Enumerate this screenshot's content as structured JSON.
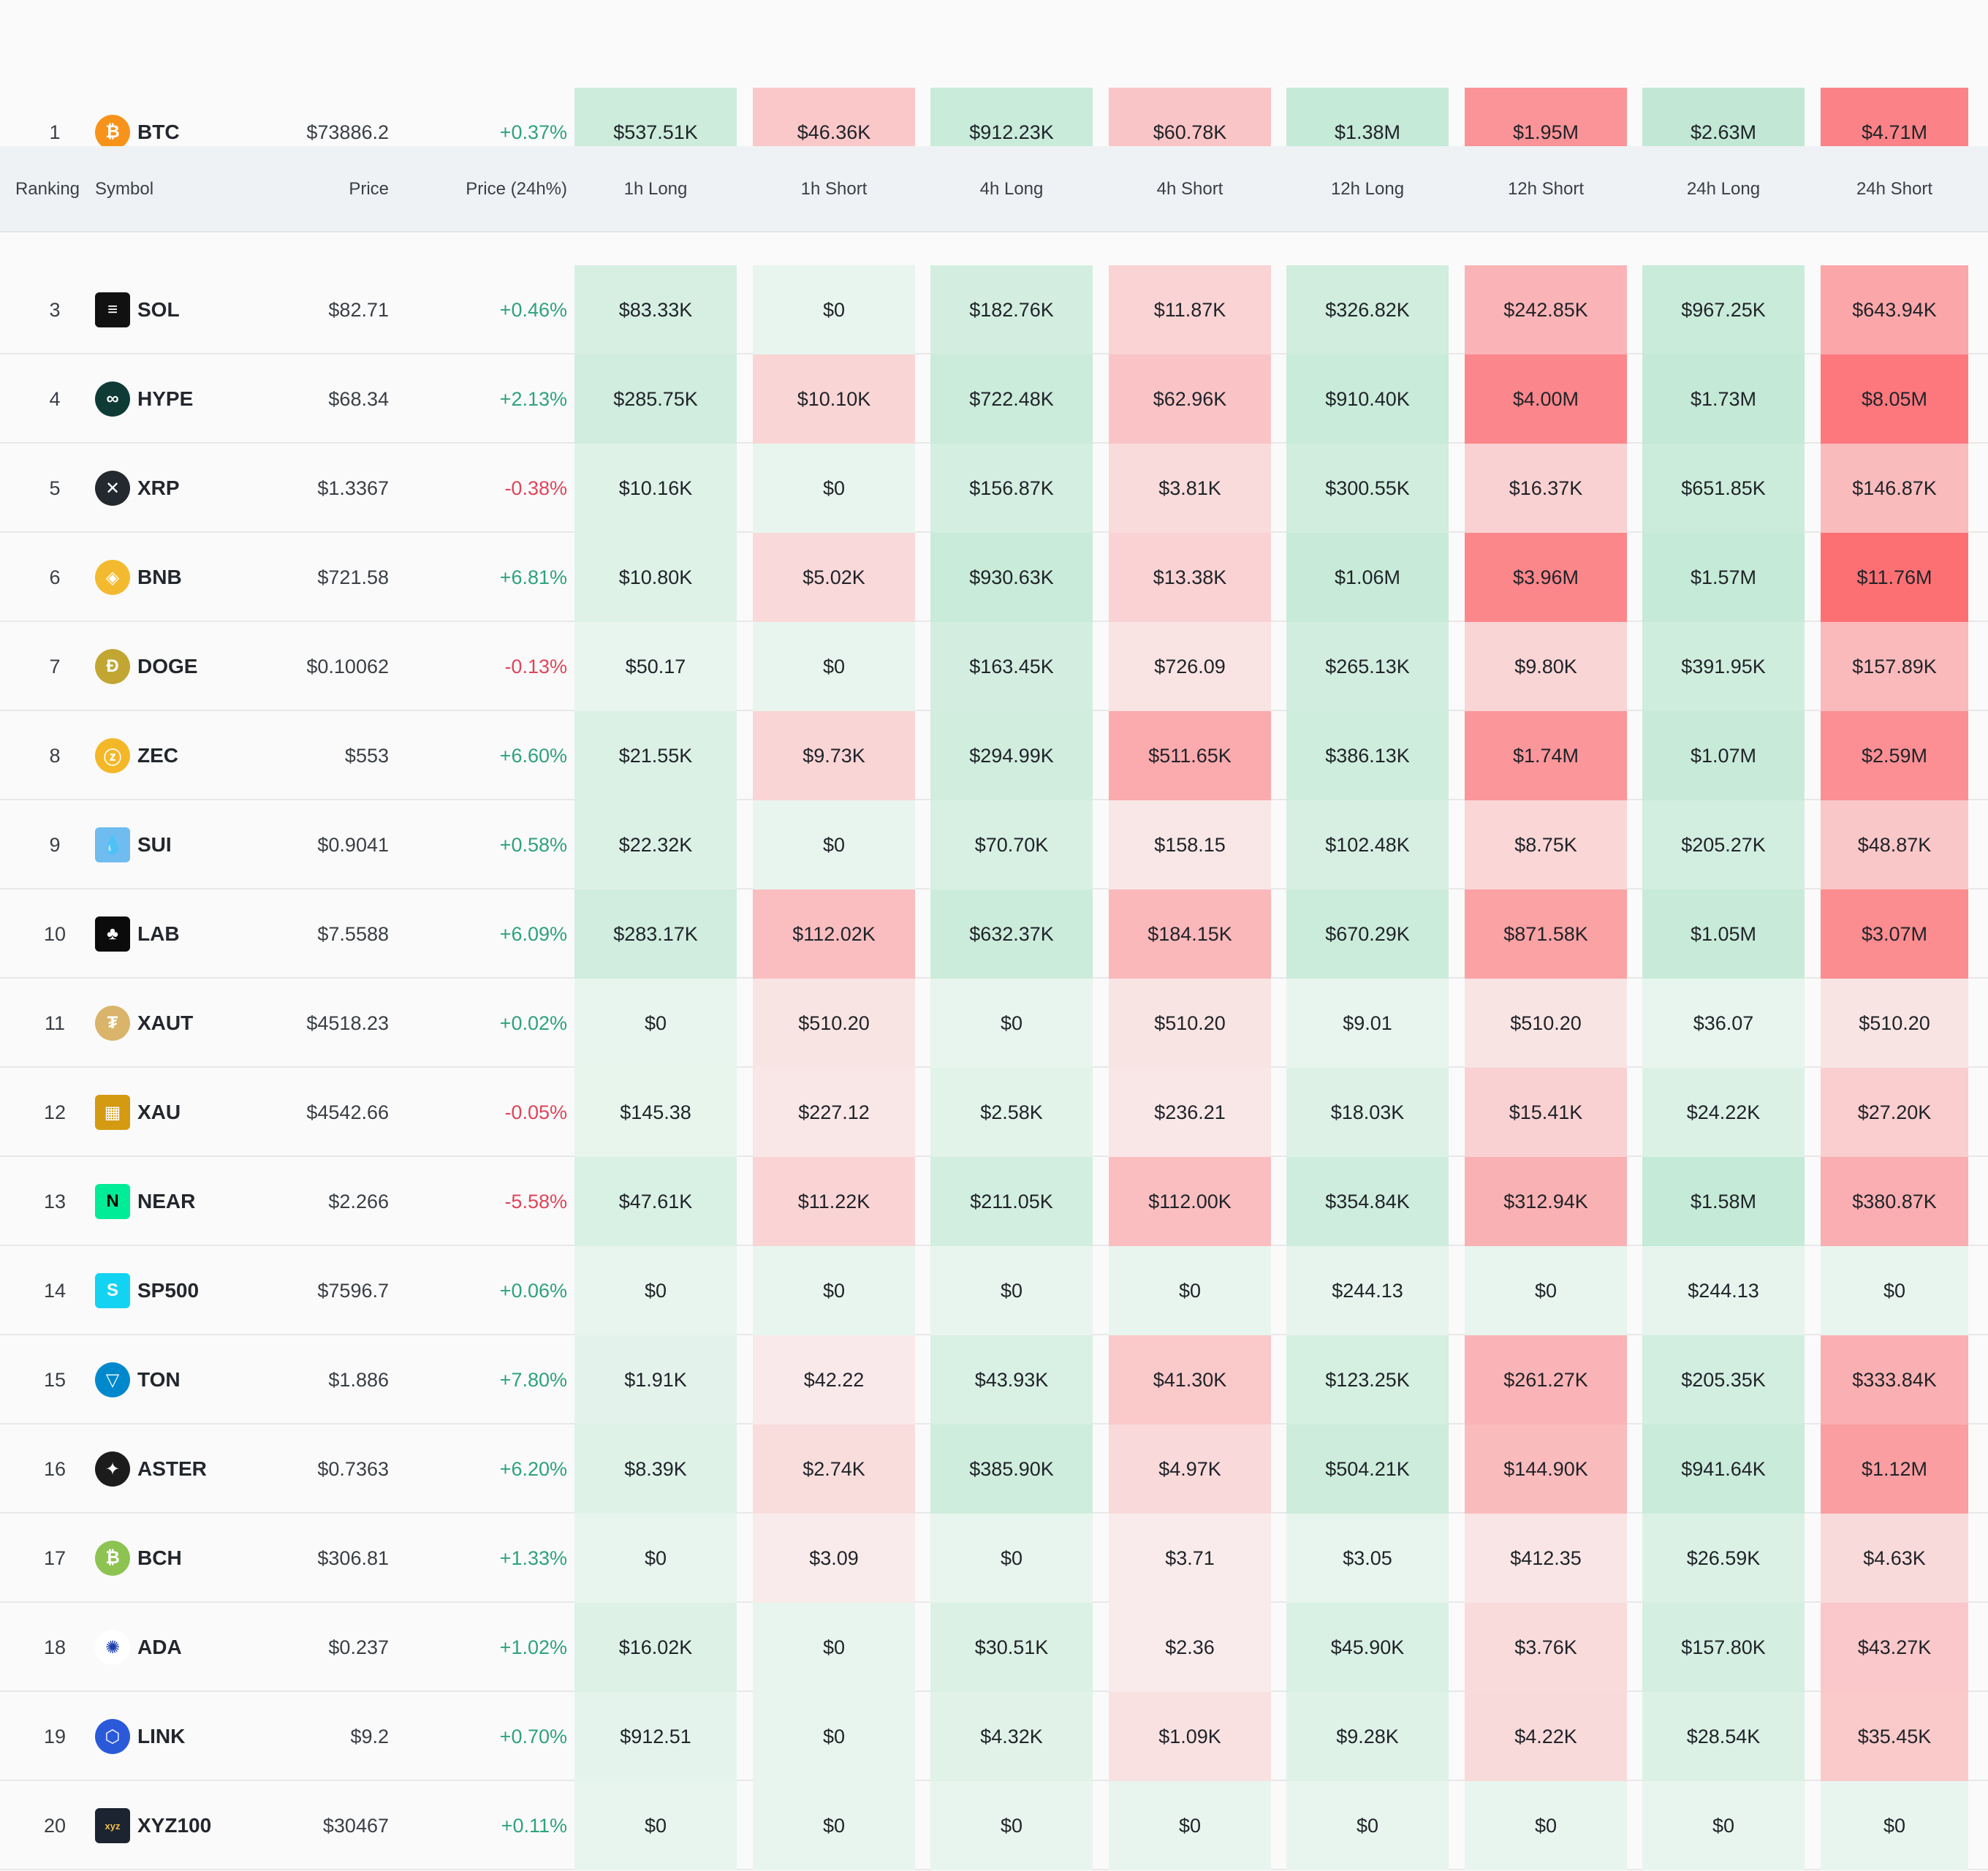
{
  "header": {
    "ranking": "Ranking",
    "symbol": "Symbol",
    "price": "Price",
    "change": "Price (24h%)",
    "cols": [
      "1h Long",
      "1h Short",
      "4h Long",
      "4h Short",
      "12h Long",
      "12h Short",
      "24h Long",
      "24h Short"
    ]
  },
  "colors": {
    "positive": "#2ea37a",
    "negative": "#e0445a",
    "long_base": "#e8f5ee",
    "short_base": "#f9ebeb"
  },
  "rows": [
    {
      "rank": "1",
      "symbol": "BTC",
      "price": "$73886.2",
      "change": "+0.37%",
      "logo": "bitcoin-icon",
      "logo_color": "#f7931a",
      "glyph": "₿",
      "values": [
        "$537.51K",
        "$46.36K",
        "$912.23K",
        "$60.78K",
        "$1.38M",
        "$1.95M",
        "$2.63M",
        "$4.71M"
      ]
    },
    {
      "rank": "3",
      "symbol": "SOL",
      "price": "$82.71",
      "change": "+0.46%",
      "logo": "solana-icon",
      "logo_color": "#111111",
      "glyph": "≡",
      "values": [
        "$83.33K",
        "$0",
        "$182.76K",
        "$11.87K",
        "$326.82K",
        "$242.85K",
        "$967.25K",
        "$643.94K"
      ]
    },
    {
      "rank": "4",
      "symbol": "HYPE",
      "price": "$68.34",
      "change": "+2.13%",
      "logo": "hyperliquid-icon",
      "logo_color": "#0e3b36",
      "glyph": "∞",
      "values": [
        "$285.75K",
        "$10.10K",
        "$722.48K",
        "$62.96K",
        "$910.40K",
        "$4.00M",
        "$1.73M",
        "$8.05M"
      ]
    },
    {
      "rank": "5",
      "symbol": "XRP",
      "price": "$1.3367",
      "change": "-0.38%",
      "logo": "xrp-icon",
      "logo_color": "#23292f",
      "glyph": "✕",
      "values": [
        "$10.16K",
        "$0",
        "$156.87K",
        "$3.81K",
        "$300.55K",
        "$16.37K",
        "$651.85K",
        "$146.87K"
      ]
    },
    {
      "rank": "6",
      "symbol": "BNB",
      "price": "$721.58",
      "change": "+6.81%",
      "logo": "bnb-icon",
      "logo_color": "#f3ba2f",
      "glyph": "◈",
      "values": [
        "$10.80K",
        "$5.02K",
        "$930.63K",
        "$13.38K",
        "$1.06M",
        "$3.96M",
        "$1.57M",
        "$11.76M"
      ]
    },
    {
      "rank": "7",
      "symbol": "DOGE",
      "price": "$0.10062",
      "change": "-0.13%",
      "logo": "dogecoin-icon",
      "logo_color": "#c2a633",
      "glyph": "Ð",
      "values": [
        "$50.17",
        "$0",
        "$163.45K",
        "$726.09",
        "$265.13K",
        "$9.80K",
        "$391.95K",
        "$157.89K"
      ]
    },
    {
      "rank": "8",
      "symbol": "ZEC",
      "price": "$553",
      "change": "+6.60%",
      "logo": "zcash-icon",
      "logo_color": "#f4b728",
      "glyph": "ⓩ",
      "values": [
        "$21.55K",
        "$9.73K",
        "$294.99K",
        "$511.65K",
        "$386.13K",
        "$1.74M",
        "$1.07M",
        "$2.59M"
      ]
    },
    {
      "rank": "9",
      "symbol": "SUI",
      "price": "$0.9041",
      "change": "+0.58%",
      "logo": "sui-icon",
      "logo_color": "#6fbcf0",
      "glyph": "💧",
      "values": [
        "$22.32K",
        "$0",
        "$70.70K",
        "$158.15",
        "$102.48K",
        "$8.75K",
        "$205.27K",
        "$48.87K"
      ]
    },
    {
      "rank": "10",
      "symbol": "LAB",
      "price": "$7.5588",
      "change": "+6.09%",
      "logo": "lab-icon",
      "logo_color": "#0b0b0b",
      "glyph": "♣",
      "values": [
        "$283.17K",
        "$112.02K",
        "$632.37K",
        "$184.15K",
        "$670.29K",
        "$871.58K",
        "$1.05M",
        "$3.07M"
      ]
    },
    {
      "rank": "11",
      "symbol": "XAUT",
      "price": "$4518.23",
      "change": "+0.02%",
      "logo": "tether-gold-icon",
      "logo_color": "#d9b46a",
      "glyph": "₮",
      "values": [
        "$0",
        "$510.20",
        "$0",
        "$510.20",
        "$9.01",
        "$510.20",
        "$36.07",
        "$510.20"
      ]
    },
    {
      "rank": "12",
      "symbol": "XAU",
      "price": "$4542.66",
      "change": "-0.05%",
      "logo": "gold-icon",
      "logo_color": "#d49a12",
      "glyph": "▦",
      "values": [
        "$145.38",
        "$227.12",
        "$2.58K",
        "$236.21",
        "$18.03K",
        "$15.41K",
        "$24.22K",
        "$27.20K"
      ]
    },
    {
      "rank": "13",
      "symbol": "NEAR",
      "price": "$2.266",
      "change": "-5.58%",
      "logo": "near-icon",
      "logo_color": "#00ec97",
      "glyph": "N",
      "values": [
        "$47.61K",
        "$11.22K",
        "$211.05K",
        "$112.00K",
        "$354.84K",
        "$312.94K",
        "$1.58M",
        "$380.87K"
      ]
    },
    {
      "rank": "14",
      "symbol": "SP500",
      "price": "$7596.7",
      "change": "+0.06%",
      "logo": "sp500-icon",
      "logo_color": "#13d3f2",
      "glyph": "S",
      "values": [
        "$0",
        "$0",
        "$0",
        "$0",
        "$244.13",
        "$0",
        "$244.13",
        "$0"
      ]
    },
    {
      "rank": "15",
      "symbol": "TON",
      "price": "$1.886",
      "change": "+7.80%",
      "logo": "toncoin-icon",
      "logo_color": "#0088cc",
      "glyph": "▽",
      "values": [
        "$1.91K",
        "$42.22",
        "$43.93K",
        "$41.30K",
        "$123.25K",
        "$261.27K",
        "$205.35K",
        "$333.84K"
      ]
    },
    {
      "rank": "16",
      "symbol": "ASTER",
      "price": "$0.7363",
      "change": "+6.20%",
      "logo": "aster-icon",
      "logo_color": "#1c1c1c",
      "glyph": "✦",
      "values": [
        "$8.39K",
        "$2.74K",
        "$385.90K",
        "$4.97K",
        "$504.21K",
        "$144.90K",
        "$941.64K",
        "$1.12M"
      ]
    },
    {
      "rank": "17",
      "symbol": "BCH",
      "price": "$306.81",
      "change": "+1.33%",
      "logo": "bitcoin-cash-icon",
      "logo_color": "#8dc351",
      "glyph": "₿",
      "values": [
        "$0",
        "$3.09",
        "$0",
        "$3.71",
        "$3.05",
        "$412.35",
        "$26.59K",
        "$4.63K"
      ]
    },
    {
      "rank": "18",
      "symbol": "ADA",
      "price": "$0.237",
      "change": "+1.02%",
      "logo": "cardano-icon",
      "logo_color": "#ffffff",
      "glyph": "✺",
      "values": [
        "$16.02K",
        "$0",
        "$30.51K",
        "$2.36",
        "$45.90K",
        "$3.76K",
        "$157.80K",
        "$43.27K"
      ]
    },
    {
      "rank": "19",
      "symbol": "LINK",
      "price": "$9.2",
      "change": "+0.70%",
      "logo": "chainlink-icon",
      "logo_color": "#2a5ada",
      "glyph": "⬡",
      "values": [
        "$912.51",
        "$0",
        "$4.32K",
        "$1.09K",
        "$9.28K",
        "$4.22K",
        "$28.54K",
        "$35.45K"
      ]
    },
    {
      "rank": "20",
      "symbol": "XYZ100",
      "price": "$30467",
      "change": "+0.11%",
      "logo": "xyz100-icon",
      "logo_color": "#1b2430",
      "glyph": "xyz",
      "values": [
        "$0",
        "$0",
        "$0",
        "$0",
        "$0",
        "$0",
        "$0",
        "$0"
      ]
    }
  ]
}
